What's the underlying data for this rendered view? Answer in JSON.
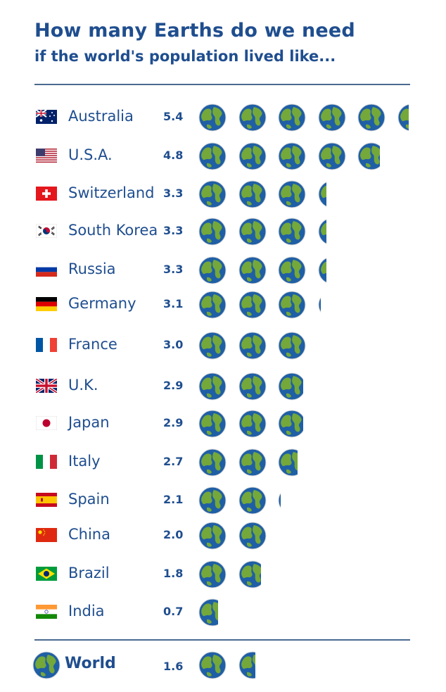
{
  "header": {
    "title": "How many Earths do we need",
    "subtitle": "if the world's population lived like..."
  },
  "colors": {
    "text": "#1f4e8f",
    "ocean": "#1f5fa5",
    "land": "#74a83a",
    "rule": "#4a6a90"
  },
  "chart_data": {
    "type": "bar",
    "unit": "Earths",
    "categories": [
      "Australia",
      "U.S.A.",
      "Switzerland",
      "South Korea",
      "Russia",
      "Germany",
      "France",
      "U.K.",
      "Japan",
      "Italy",
      "Spain",
      "China",
      "Brazil",
      "India"
    ],
    "values": [
      5.4,
      4.8,
      3.3,
      3.3,
      3.3,
      3.1,
      3.0,
      2.9,
      2.9,
      2.7,
      2.1,
      2.0,
      1.8,
      0.7
    ],
    "value_labels": [
      "5.4",
      "4.8",
      "3.3",
      "3.3",
      "3.3",
      "3.1",
      "3.0",
      "2.9",
      "2.9",
      "2.7",
      "2.1",
      "2.0",
      "1.8",
      "0.7"
    ],
    "flags": [
      "australia-flag",
      "usa-flag",
      "switzerland-flag",
      "south-korea-flag",
      "russia-flag",
      "germany-flag",
      "france-flag",
      "uk-flag",
      "japan-flag",
      "italy-flag",
      "spain-flag",
      "china-flag",
      "brazil-flag",
      "india-flag"
    ],
    "mark_icon": "earth-globe-icon",
    "total": {
      "label": "World",
      "value": 1.6,
      "value_label": "1.6"
    }
  }
}
